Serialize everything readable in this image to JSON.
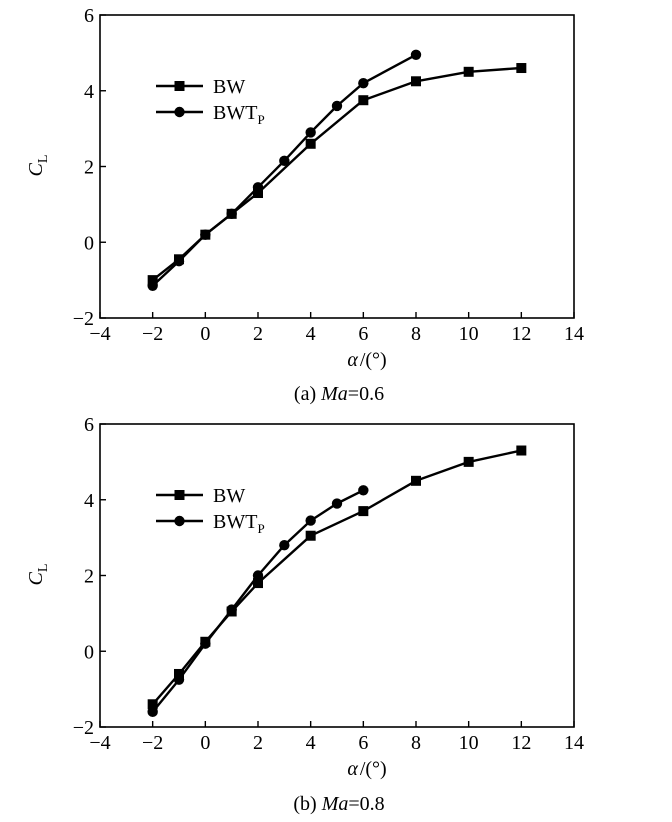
{
  "chart_data": [
    {
      "type": "line",
      "id": "a",
      "caption_prefix": "(a) ",
      "caption_var": "Ma",
      "caption_suffix": "=0.6",
      "xlabel_symbol": "α",
      "xlabel_unit": "/(°)",
      "ylabel_main": "C",
      "ylabel_sub": "L",
      "xlim": [
        -4,
        14
      ],
      "ylim": [
        -2,
        6
      ],
      "xticks": [
        -4,
        -2,
        0,
        2,
        4,
        6,
        8,
        10,
        12,
        14
      ],
      "xtick_labels": [
        "−4",
        "−2",
        "0",
        "2",
        "4",
        "6",
        "8",
        "10",
        "12",
        "14"
      ],
      "yticks": [
        -2,
        0,
        2,
        4,
        6
      ],
      "ytick_labels": [
        "−2",
        "0",
        "2",
        "4",
        "6"
      ],
      "legend_position": "upper-left",
      "series": [
        {
          "name": "BW",
          "name_sub": "",
          "marker": "square",
          "x": [
            -2,
            -1,
            0,
            1,
            2,
            4,
            6,
            8,
            10,
            12
          ],
          "y": [
            -1.0,
            -0.45,
            0.2,
            0.75,
            1.3,
            2.6,
            3.75,
            4.25,
            4.5,
            4.6
          ]
        },
        {
          "name": "BWT",
          "name_sub": "P",
          "marker": "circle",
          "x": [
            -2,
            -1,
            0,
            1,
            2,
            3,
            4,
            5,
            6,
            8
          ],
          "y": [
            -1.15,
            -0.5,
            0.2,
            0.75,
            1.45,
            2.15,
            2.9,
            3.6,
            4.2,
            4.95
          ]
        }
      ]
    },
    {
      "type": "line",
      "id": "b",
      "caption_prefix": "(b) ",
      "caption_var": "Ma",
      "caption_suffix": "=0.8",
      "xlabel_symbol": "α",
      "xlabel_unit": "/(°)",
      "ylabel_main": "C",
      "ylabel_sub": "L",
      "xlim": [
        -4,
        14
      ],
      "ylim": [
        -2,
        6
      ],
      "xticks": [
        -4,
        -2,
        0,
        2,
        4,
        6,
        8,
        10,
        12,
        14
      ],
      "xtick_labels": [
        "−4",
        "−2",
        "0",
        "2",
        "4",
        "6",
        "8",
        "10",
        "12",
        "14"
      ],
      "yticks": [
        -2,
        0,
        2,
        4,
        6
      ],
      "ytick_labels": [
        "−2",
        "0",
        "2",
        "4",
        "6"
      ],
      "legend_position": "upper-left",
      "series": [
        {
          "name": "BW",
          "name_sub": "",
          "marker": "square",
          "x": [
            -2,
            -1,
            0,
            1,
            2,
            4,
            6,
            8,
            10,
            12
          ],
          "y": [
            -1.4,
            -0.6,
            0.25,
            1.05,
            1.8,
            3.05,
            3.7,
            4.5,
            5.0,
            5.3
          ]
        },
        {
          "name": "BWT",
          "name_sub": "P",
          "marker": "circle",
          "x": [
            -2,
            -1,
            0,
            1,
            2,
            3,
            4,
            5,
            6
          ],
          "y": [
            -1.6,
            -0.75,
            0.2,
            1.1,
            2.0,
            2.8,
            3.45,
            3.9,
            4.25
          ]
        }
      ]
    }
  ]
}
